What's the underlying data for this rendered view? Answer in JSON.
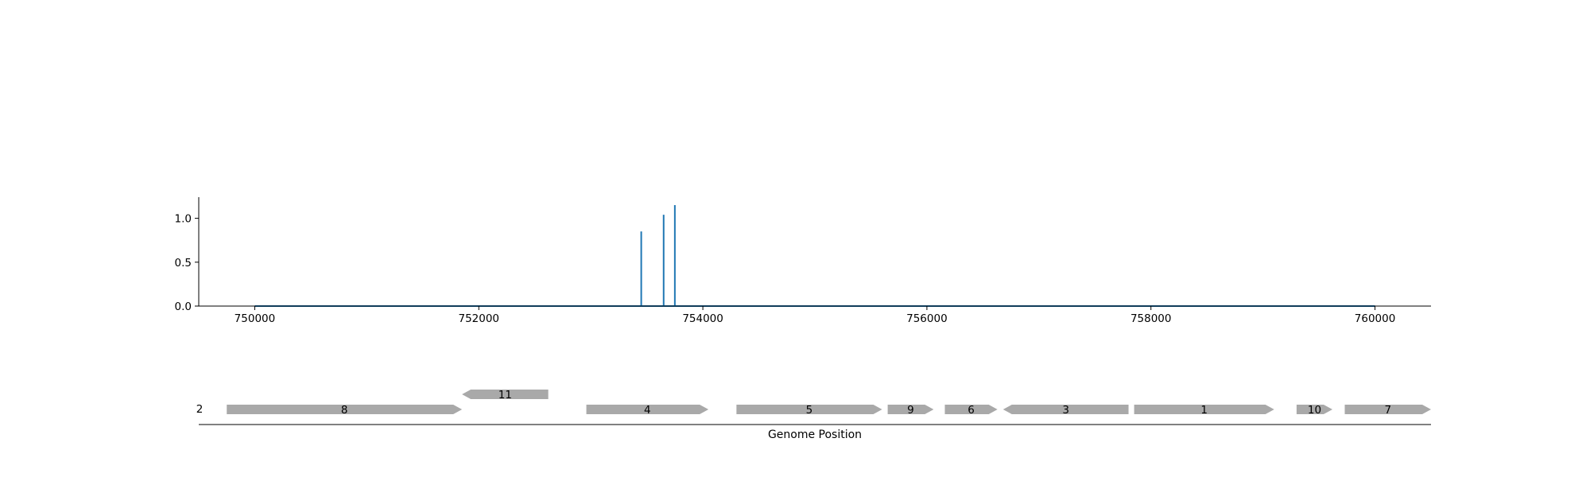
{
  "chart_data": [
    {
      "type": "line",
      "title": "",
      "xlabel": "",
      "ylabel": "",
      "xlim": [
        749500,
        760500
      ],
      "ylim": [
        0,
        1.25
      ],
      "x_ticks": [
        "750000",
        "752000",
        "754000",
        "756000",
        "758000",
        "760000"
      ],
      "x_tick_values": [
        750000,
        752000,
        754000,
        756000,
        758000,
        760000
      ],
      "y_ticks": [
        "0.0",
        "0.5",
        "1.0"
      ],
      "y_tick_values": [
        0.0,
        0.5,
        1.0
      ],
      "grid": false,
      "baseline": [
        750000,
        760000
      ],
      "spikes": [
        {
          "x": 753450,
          "y": 0.85
        },
        {
          "x": 753650,
          "y": 1.04
        },
        {
          "x": 753750,
          "y": 1.15
        }
      ],
      "color": "#1f77b4"
    },
    {
      "type": "gene-track",
      "xlabel": "Genome Position",
      "xlim": [
        749500,
        760500
      ],
      "track_labels": [
        "2"
      ],
      "color": "#a9a9a9",
      "genes": [
        {
          "label": "8",
          "start": 749750,
          "end": 751850,
          "strand": "+",
          "row": 0
        },
        {
          "label": "11",
          "start": 751850,
          "end": 752620,
          "strand": "-",
          "row": 1
        },
        {
          "label": "4",
          "start": 752960,
          "end": 754050,
          "strand": "+",
          "row": 0
        },
        {
          "label": "5",
          "start": 754300,
          "end": 755600,
          "strand": "+",
          "row": 0
        },
        {
          "label": "9",
          "start": 755650,
          "end": 756060,
          "strand": "+",
          "row": 0
        },
        {
          "label": "6",
          "start": 756160,
          "end": 756630,
          "strand": "+",
          "row": 0
        },
        {
          "label": "3",
          "start": 756680,
          "end": 757800,
          "strand": "-",
          "row": 0
        },
        {
          "label": "1",
          "start": 757850,
          "end": 759100,
          "strand": "+",
          "row": 0
        },
        {
          "label": "10",
          "start": 759300,
          "end": 759620,
          "strand": "+",
          "row": 0
        },
        {
          "label": "7",
          "start": 759730,
          "end": 760500,
          "strand": "+",
          "row": 0
        }
      ]
    }
  ]
}
